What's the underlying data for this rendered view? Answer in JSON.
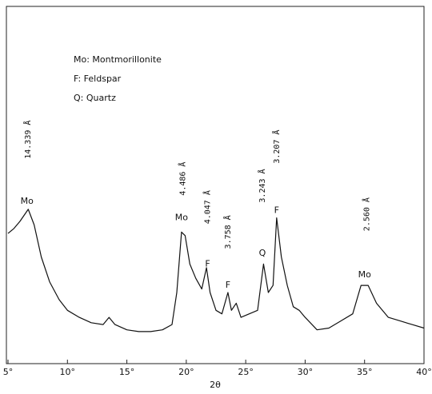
{
  "chart_data": {
    "type": "line",
    "x_label": "2θ",
    "legend_text": [
      "Mo: Montmorillonite",
      "F: Feldspar",
      "Q: Quartz"
    ],
    "x": [
      5,
      5.5,
      6,
      6.7,
      7.2,
      7.8,
      8.5,
      9.3,
      10,
      11,
      12,
      13,
      13.5,
      14,
      15,
      16,
      17,
      18,
      18.8,
      19.2,
      19.6,
      19.9,
      20.3,
      20.8,
      21.3,
      21.7,
      22,
      22.5,
      23,
      23.5,
      23.8,
      24.2,
      24.6,
      25.3,
      26,
      26.5,
      26.9,
      27.3,
      27.6,
      28,
      28.5,
      29,
      29.5,
      30,
      31,
      32,
      33,
      34,
      34.7,
      35.3,
      36,
      37,
      38,
      39,
      40
    ],
    "series": [
      {
        "color": "#111111",
        "values": [
          36.6,
          38,
          40,
          43.4,
          39,
          30,
          23,
          18,
          15,
          13,
          11.5,
          11,
          13,
          11,
          9.5,
          9,
          9,
          9.5,
          11,
          20,
          37,
          36,
          28,
          24,
          21,
          27,
          20,
          15,
          14,
          20,
          15,
          17,
          13,
          14,
          15,
          28,
          20,
          22,
          41,
          30,
          22,
          16,
          15,
          13,
          9.5,
          10,
          12,
          14,
          22,
          22,
          17,
          13,
          12,
          11,
          10
        ]
      }
    ],
    "xlim": [
      5,
      40
    ],
    "ylim": [
      0,
      100
    ],
    "xticks": [
      {
        "value": 5,
        "label": "5°"
      },
      {
        "value": 10,
        "label": "10°"
      },
      {
        "value": 15,
        "label": "15°"
      },
      {
        "value": 20,
        "label": "20°"
      },
      {
        "value": 25,
        "label": "25°"
      },
      {
        "value": 30,
        "label": "30°"
      },
      {
        "value": 35,
        "label": "35°"
      },
      {
        "value": 40,
        "label": "40°"
      }
    ],
    "peak_labels": [
      {
        "text": "Mo",
        "x": 6.6,
        "y": 45.6
      },
      {
        "text": "Mo",
        "x": 19.6,
        "y": 41
      },
      {
        "text": "F",
        "x": 21.8,
        "y": 28
      },
      {
        "text": "F",
        "x": 23.5,
        "y": 22
      },
      {
        "text": "Q",
        "x": 26.4,
        "y": 31
      },
      {
        "text": "F",
        "x": 27.6,
        "y": 43
      },
      {
        "text": "Mo",
        "x": 35,
        "y": 25
      }
    ],
    "d_spacing_labels": [
      {
        "text": "14.339 Å",
        "x": 6.7,
        "y": 63
      },
      {
        "text": "4.486 Å",
        "x": 19.7,
        "y": 52
      },
      {
        "text": "4.047 Å",
        "x": 21.8,
        "y": 44
      },
      {
        "text": "3.758 Å",
        "x": 23.5,
        "y": 37
      },
      {
        "text": "3.243 Å",
        "x": 26.4,
        "y": 50
      },
      {
        "text": "3.207 Å",
        "x": 27.6,
        "y": 61
      },
      {
        "text": "2.560 Å",
        "x": 35.2,
        "y": 42
      }
    ]
  }
}
